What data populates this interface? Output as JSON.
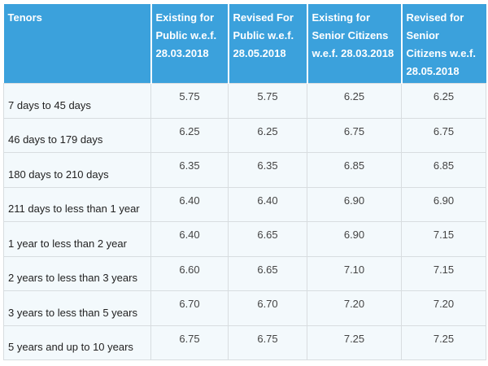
{
  "table": {
    "header": [
      "Tenors",
      "Existing for Public w.e.f. 28.03.2018",
      "Revised For Public w.e.f. 28.05.2018",
      "Existing for Senior Citizens w.e.f. 28.03.2018",
      "Revised for Senior Citizens w.e.f. 28.05.2018"
    ],
    "rows": [
      [
        "7 days to 45 days",
        "5.75",
        "5.75",
        "6.25",
        "6.25"
      ],
      [
        "46 days to 179 days",
        "6.25",
        "6.25",
        "6.75",
        "6.75"
      ],
      [
        "180 days to 210 days",
        "6.35",
        "6.35",
        "6.85",
        "6.85"
      ],
      [
        "211 days to less than 1 year",
        "6.40",
        "6.40",
        "6.90",
        "6.90"
      ],
      [
        "1 year to less than 2 year",
        "6.40",
        "6.65",
        "6.90",
        "7.15"
      ],
      [
        "2 years to less than 3 years",
        "6.60",
        "6.65",
        "7.10",
        "7.15"
      ],
      [
        "3 years to less than 5 years",
        "6.70",
        "6.70",
        "7.20",
        "7.20"
      ],
      [
        "5 years and up to 10 years",
        "6.75",
        "6.75",
        "7.25",
        "7.25"
      ]
    ]
  }
}
